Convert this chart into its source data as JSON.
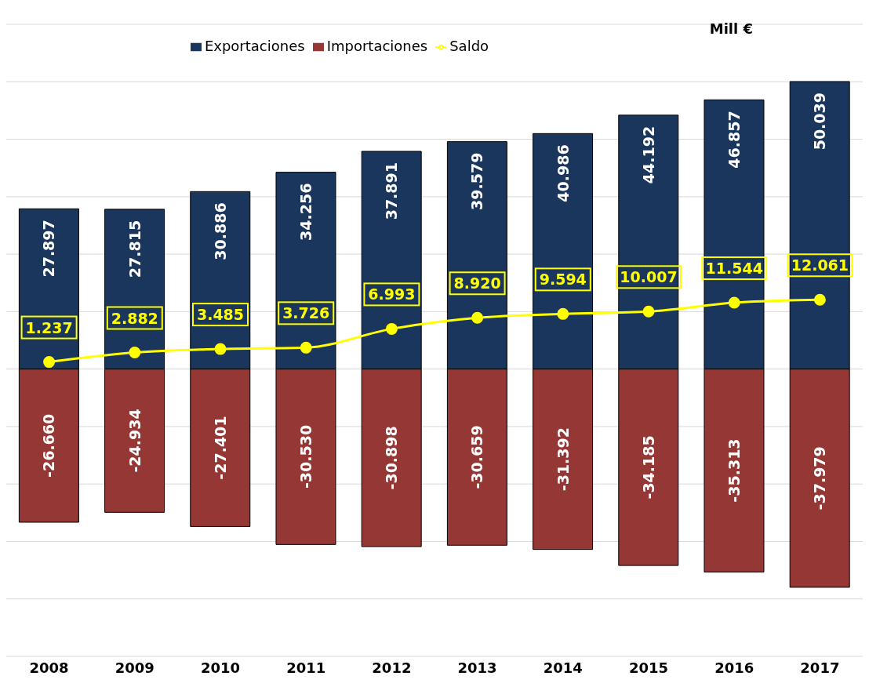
{
  "chart_data": {
    "type": "bar",
    "stacked": true,
    "categories": [
      "2008",
      "2009",
      "2010",
      "2011",
      "2012",
      "2013",
      "2014",
      "2015",
      "2016",
      "2017"
    ],
    "series": [
      {
        "name": "Exportaciones",
        "color": "#1b365d",
        "values": [
          27897,
          27815,
          30886,
          34256,
          37891,
          39579,
          40986,
          44192,
          46857,
          50039
        ],
        "value_labels": [
          "27.897",
          "27.815",
          "30.886",
          "34.256",
          "37.891",
          "39.579",
          "40.986",
          "44.192",
          "46.857",
          "50.039"
        ]
      },
      {
        "name": "Importaciones",
        "color": "#953735",
        "values": [
          -26660,
          -24934,
          -27401,
          -30530,
          -30898,
          -30659,
          -31392,
          -34185,
          -35313,
          -37979
        ],
        "value_labels": [
          "-26.660",
          "-24.934",
          "-27.401",
          "-30.530",
          "-30.898",
          "-30.659",
          "-31.392",
          "-34.185",
          "-35.313",
          "-37.979"
        ]
      },
      {
        "name": "Saldo",
        "type": "line",
        "color": "#ffff00",
        "marker": "circle",
        "values": [
          1237,
          2882,
          3485,
          3726,
          6993,
          8920,
          9594,
          10007,
          11544,
          12061
        ],
        "value_labels": [
          "1.237",
          "2.882",
          "3.485",
          "3.726",
          "6.993",
          "8.920",
          "9.594",
          "10.007",
          "11.544",
          "12.061"
        ]
      }
    ],
    "ylim": [
      -50000,
      60000
    ],
    "yticks": [
      {
        "value": -50000,
        "label": null
      },
      {
        "value": -40000,
        "label": null
      },
      {
        "value": -30000,
        "label": null
      },
      {
        "value": -20000,
        "label": null
      },
      {
        "value": -10000,
        "label": null
      },
      {
        "value": 0,
        "label": null
      },
      {
        "value": 10000,
        "label": null
      },
      {
        "value": 20000,
        "label": null
      },
      {
        "value": 30000,
        "label": null
      },
      {
        "value": 40000,
        "label": null
      },
      {
        "value": 50000,
        "label": null
      },
      {
        "value": 60000,
        "label": null
      }
    ],
    "tick_labels": "x",
    "grid": "y",
    "legend": "top",
    "annotations": [
      "Mill €"
    ]
  }
}
